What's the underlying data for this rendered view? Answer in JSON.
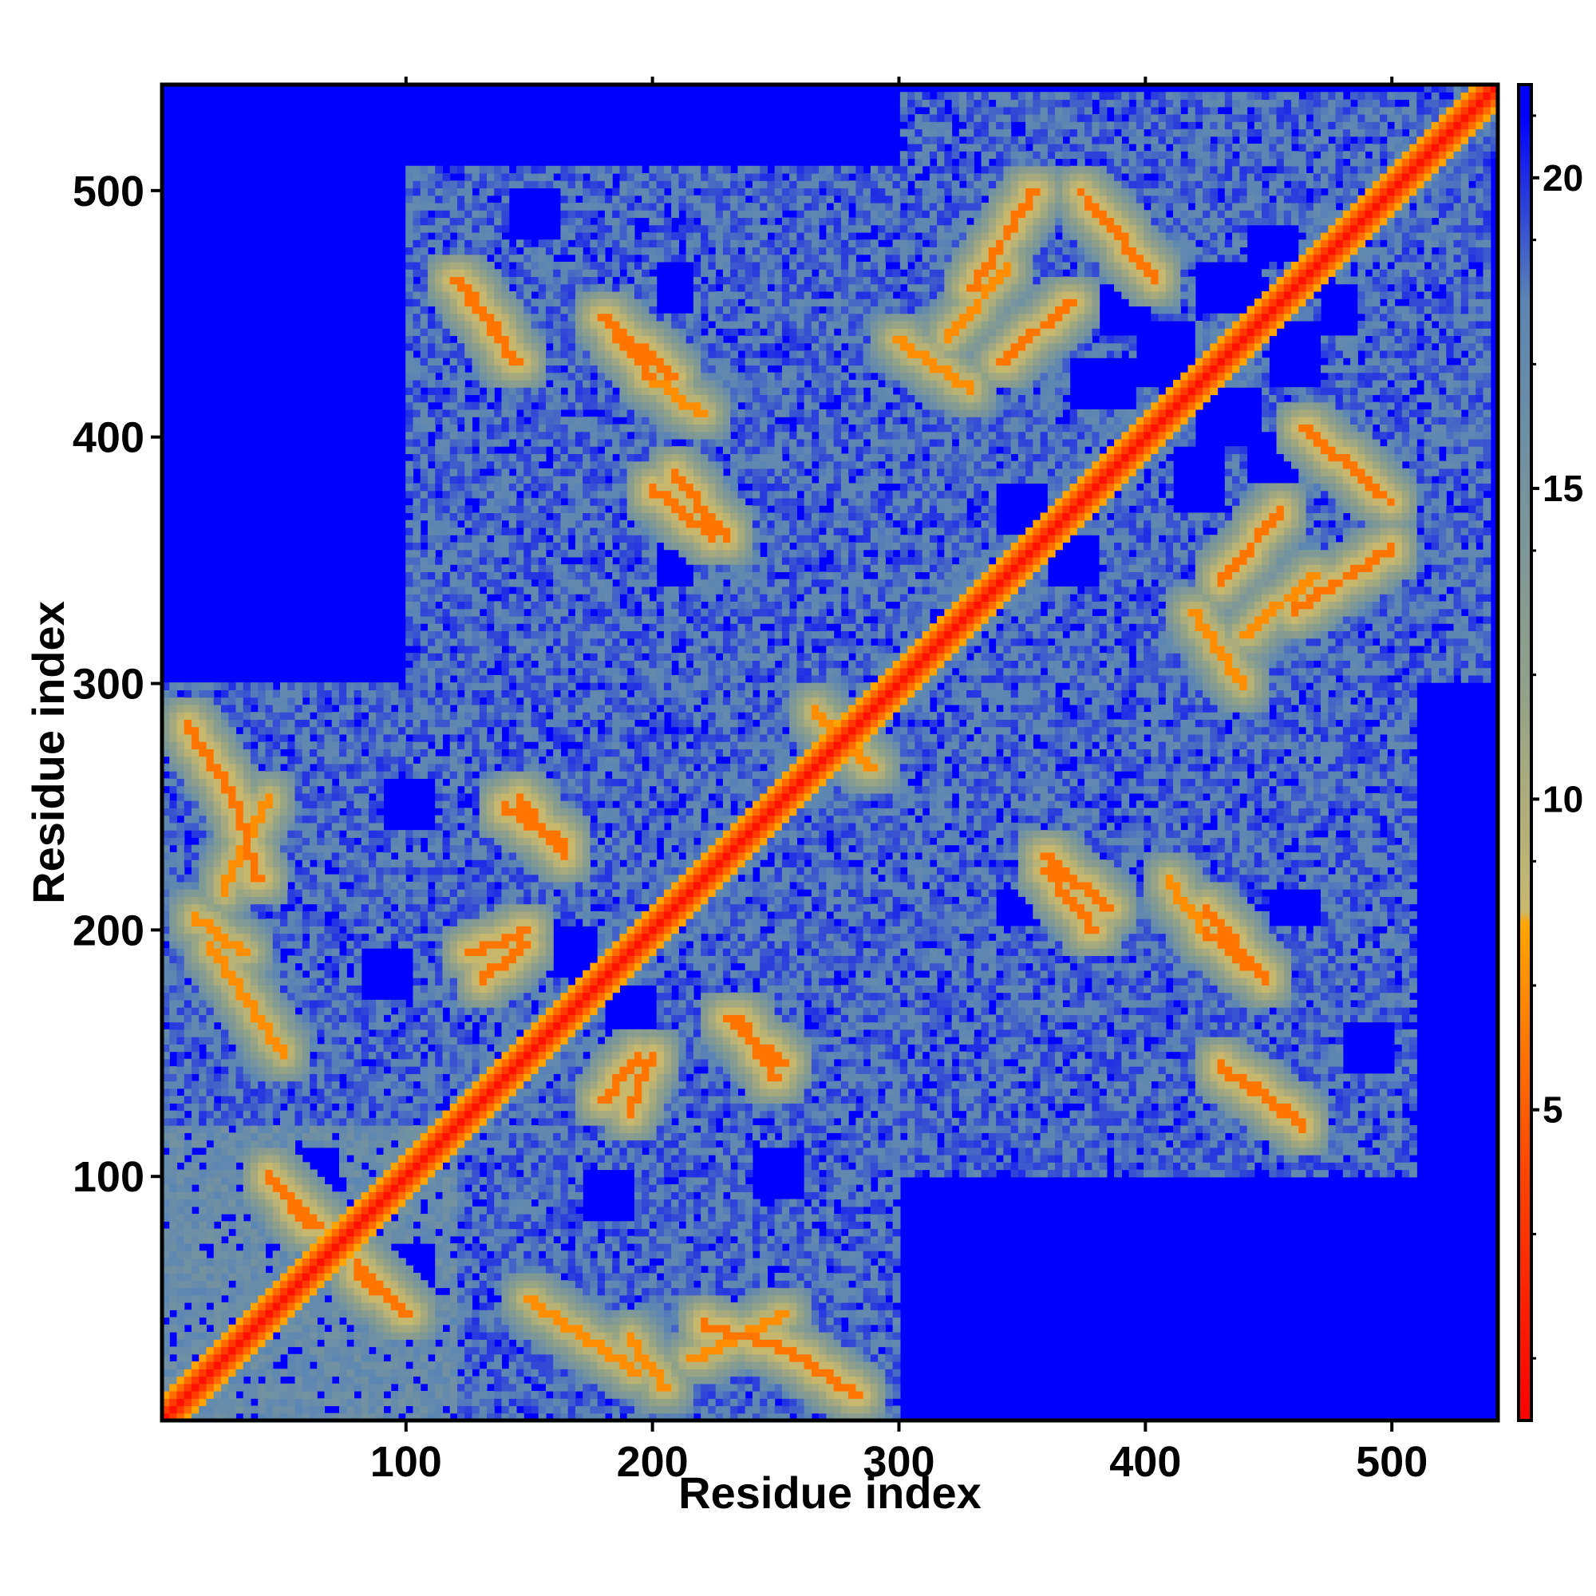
{
  "chart_data": {
    "type": "heatmap",
    "title": "",
    "xlabel": "Residue index",
    "ylabel": "Residue index",
    "xlim": [
      1,
      543
    ],
    "ylim": [
      1,
      543
    ],
    "x_ticks": [
      100,
      200,
      300,
      400,
      500
    ],
    "y_ticks": [
      100,
      200,
      300,
      400,
      500
    ],
    "colorbar": {
      "range": [
        0,
        21.5
      ],
      "ticks": [
        5,
        10,
        15,
        20
      ],
      "stops": [
        {
          "value": 0,
          "color": "#ff0000"
        },
        {
          "value": 4,
          "color": "#ff4500"
        },
        {
          "value": 8,
          "color": "#ffa500"
        },
        {
          "value": 8.2,
          "color": "#c8b86e"
        },
        {
          "value": 12,
          "color": "#8fa08a"
        },
        {
          "value": 18,
          "color": "#5b86b4"
        },
        {
          "value": 21,
          "color": "#0000ff"
        }
      ]
    },
    "saturation_value": 21,
    "diagonal_value": 1,
    "regions": [
      {
        "x": [
          1,
          120
        ],
        "y": [
          1,
          120
        ],
        "value": 15
      },
      {
        "x": [
          1,
          300
        ],
        "y": [
          1,
          300
        ],
        "value": 17
      },
      {
        "x": [
          100,
          300
        ],
        "y": [
          1,
          60
        ],
        "value": 17
      },
      {
        "x": [
          300,
          500
        ],
        "y": [
          300,
          500
        ],
        "value": 17
      },
      {
        "x": [
          100,
          540
        ],
        "y": [
          300,
          510
        ],
        "value": 17
      },
      {
        "x": [
          300,
          500
        ],
        "y": [
          100,
          300
        ],
        "value": 17
      },
      {
        "x": [
          1,
          120
        ],
        "y": [
          150,
          290
        ],
        "value": 17
      }
    ],
    "contact_bands": [
      {
        "from": [
          10,
          285
        ],
        "to": [
          30,
          255
        ],
        "value": 6
      },
      {
        "from": [
          30,
          255
        ],
        "to": [
          40,
          220
        ],
        "value": 6
      },
      {
        "from": [
          15,
          205
        ],
        "to": [
          35,
          190
        ],
        "value": 7
      },
      {
        "from": [
          120,
          465
        ],
        "to": [
          140,
          440
        ],
        "value": 6
      },
      {
        "from": [
          180,
          450
        ],
        "to": [
          200,
          425
        ],
        "value": 6
      },
      {
        "from": [
          200,
          425
        ],
        "to": [
          220,
          410
        ],
        "value": 7
      },
      {
        "from": [
          210,
          385
        ],
        "to": [
          230,
          360
        ],
        "value": 6
      },
      {
        "from": [
          140,
          250
        ],
        "to": [
          165,
          235
        ],
        "value": 6
      },
      {
        "from": [
          125,
          190
        ],
        "to": [
          150,
          200
        ],
        "value": 6
      },
      {
        "from": [
          180,
          130
        ],
        "to": [
          195,
          150
        ],
        "value": 6
      },
      {
        "from": [
          230,
          165
        ],
        "to": [
          255,
          145
        ],
        "value": 6
      },
      {
        "from": [
          150,
          50
        ],
        "to": [
          195,
          20
        ],
        "value": 7
      },
      {
        "from": [
          215,
          25
        ],
        "to": [
          255,
          45
        ],
        "value": 7
      },
      {
        "from": [
          330,
          460
        ],
        "to": [
          355,
          500
        ],
        "value": 6
      },
      {
        "from": [
          375,
          500
        ],
        "to": [
          405,
          465
        ],
        "value": 6
      },
      {
        "from": [
          320,
          440
        ],
        "to": [
          345,
          470
        ],
        "value": 7
      },
      {
        "from": [
          470,
          400
        ],
        "to": [
          500,
          375
        ],
        "value": 6
      },
      {
        "from": [
          430,
          340
        ],
        "to": [
          455,
          370
        ],
        "value": 6
      },
      {
        "from": [
          420,
          330
        ],
        "to": [
          440,
          300
        ],
        "value": 7
      },
      {
        "from": [
          360,
          225
        ],
        "to": [
          380,
          200
        ],
        "value": 6
      },
      {
        "from": [
          425,
          210
        ],
        "to": [
          445,
          185
        ],
        "value": 6
      },
      {
        "from": [
          430,
          145
        ],
        "to": [
          460,
          125
        ],
        "value": 6
      },
      {
        "from": [
          265,
          290
        ],
        "to": [
          290,
          265
        ],
        "value": 7
      },
      {
        "from": [
          45,
          100
        ],
        "to": [
          65,
          80
        ],
        "value": 6
      },
      {
        "from": [
          80,
          60
        ],
        "to": [
          100,
          45
        ],
        "value": 6
      }
    ],
    "voids": [
      {
        "x": [
          140,
          160
        ],
        "y": [
          480,
          500
        ]
      },
      {
        "x": [
          200,
          215
        ],
        "y": [
          450,
          470
        ]
      },
      {
        "x": [
          380,
          400
        ],
        "y": [
          440,
          460
        ]
      },
      {
        "x": [
          470,
          485
        ],
        "y": [
          440,
          460
        ]
      },
      {
        "x": [
          395,
          420
        ],
        "y": [
          420,
          445
        ]
      },
      {
        "x": [
          450,
          470
        ],
        "y": [
          420,
          445
        ]
      },
      {
        "x": [
          410,
          430
        ],
        "y": [
          370,
          395
        ]
      },
      {
        "x": [
          360,
          380
        ],
        "y": [
          340,
          360
        ]
      },
      {
        "x": [
          200,
          215
        ],
        "y": [
          340,
          360
        ]
      },
      {
        "x": [
          80,
          100
        ],
        "y": [
          170,
          190
        ]
      },
      {
        "x": [
          160,
          175
        ],
        "y": [
          180,
          200
        ]
      },
      {
        "x": [
          50,
          70
        ],
        "y": [
          90,
          110
        ]
      },
      {
        "x": [
          70,
          90
        ],
        "y": [
          60,
          80
        ]
      },
      {
        "x": [
          240,
          260
        ],
        "y": [
          90,
          110
        ]
      }
    ]
  }
}
